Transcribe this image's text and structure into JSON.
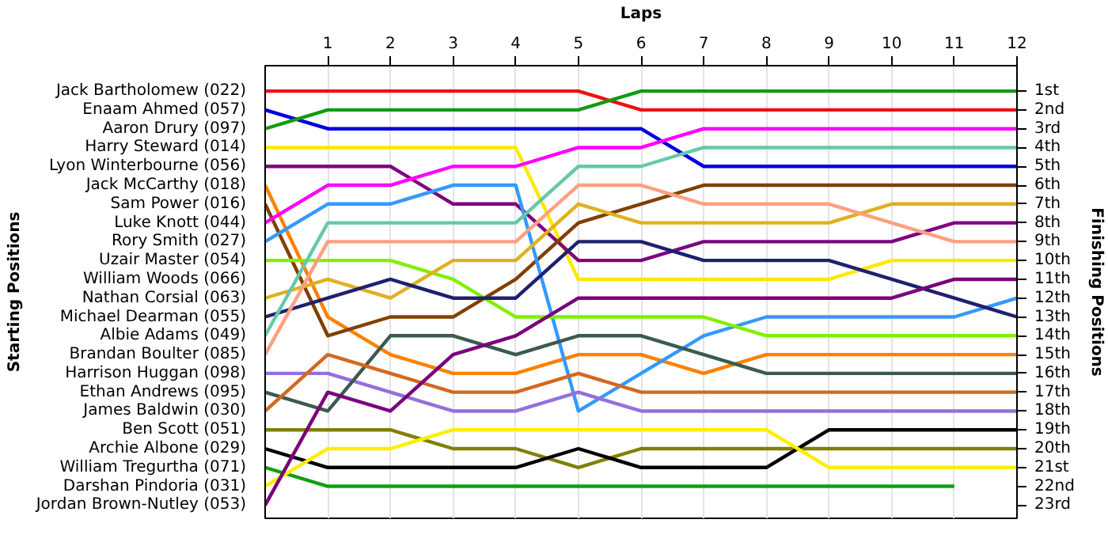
{
  "chart_data": {
    "type": "line",
    "xlabel": "Laps",
    "ylabel": "Finishing Positions",
    "annotations": [
      "Starting Positions",
      "William Woods (066)"
    ],
    "x": [
      0,
      1,
      2,
      3,
      4,
      5,
      6,
      7,
      8,
      9,
      10,
      11,
      12
    ],
    "xlim": [
      0,
      12
    ],
    "xticks": [
      1,
      2,
      3,
      4,
      5,
      6,
      7,
      8,
      9,
      10,
      11,
      12
    ],
    "ylim": [
      23.7,
      -0.35
    ],
    "yticks": [
      {
        "value": 1,
        "label": "1st"
      },
      {
        "value": 2,
        "label": "2nd"
      },
      {
        "value": 3,
        "label": "3rd"
      },
      {
        "value": 4,
        "label": "4th"
      },
      {
        "value": 5,
        "label": "5th"
      },
      {
        "value": 6,
        "label": "6th"
      },
      {
        "value": 7,
        "label": "7th"
      },
      {
        "value": 8,
        "label": "8th"
      },
      {
        "value": 9,
        "label": "9th"
      },
      {
        "value": 10,
        "label": "10th"
      },
      {
        "value": 11,
        "label": "11th"
      },
      {
        "value": 12,
        "label": "12th"
      },
      {
        "value": 13,
        "label": "13th"
      },
      {
        "value": 14,
        "label": "14th"
      },
      {
        "value": 15,
        "label": "15th"
      },
      {
        "value": 16,
        "label": "16th"
      },
      {
        "value": 17,
        "label": "17th"
      },
      {
        "value": 18,
        "label": "18th"
      },
      {
        "value": 19,
        "label": "19th"
      },
      {
        "value": 20,
        "label": "20th"
      },
      {
        "value": 21,
        "label": "21st"
      },
      {
        "value": 22,
        "label": "22nd"
      },
      {
        "value": 23,
        "label": "23rd"
      }
    ],
    "grid": "x",
    "legend": false,
    "marker": "none",
    "line_style": "solid",
    "series": [
      {
        "name": "Jack Bartholomew (022)",
        "color": "#ee1111",
        "values": [
          1,
          1,
          1,
          1,
          1,
          1,
          2,
          2,
          2,
          2,
          2,
          2,
          2
        ]
      },
      {
        "name": "Enaam Ahmed (057)",
        "color": "#0000dd",
        "values": [
          2,
          3,
          3,
          3,
          3,
          3,
          3,
          5,
          5,
          5,
          5,
          5,
          5
        ]
      },
      {
        "name": "Aaron Drury (097)",
        "color": "#129a12",
        "values": [
          3,
          2,
          2,
          2,
          2,
          2,
          1,
          1,
          1,
          1,
          1,
          1,
          1
        ]
      },
      {
        "name": "Harry Steward (014)",
        "color": "#ffe800",
        "values": [
          4,
          4,
          4,
          4,
          4,
          11,
          11,
          11,
          11,
          11,
          10,
          10,
          10
        ]
      },
      {
        "name": "Lyon Winterbourne (056)",
        "color": "#800080",
        "values": [
          5,
          5,
          5,
          7,
          7,
          10,
          10,
          9,
          9,
          9,
          9,
          8,
          8
        ]
      },
      {
        "name": "Jack McCarthy (018)",
        "color": "#ff8000",
        "values": [
          6,
          13,
          15,
          16,
          16,
          15,
          15,
          16,
          15,
          15,
          15,
          15,
          15
        ]
      },
      {
        "name": "Sam Power (016)",
        "color": "#804000",
        "values": [
          7,
          14,
          13,
          13,
          11,
          8,
          7,
          6,
          6,
          6,
          6,
          6,
          6
        ]
      },
      {
        "name": "Luke Knott (044)",
        "color": "#ff00ff",
        "values": [
          8,
          6,
          6,
          5,
          5,
          4,
          4,
          3,
          3,
          3,
          3,
          3,
          3
        ]
      },
      {
        "name": "Rory Smith (027)",
        "color": "#3399ff",
        "values": [
          9,
          7,
          7,
          6,
          6,
          18,
          16,
          14,
          13,
          13,
          13,
          13,
          12
        ]
      },
      {
        "name": "Uzair Master (054)",
        "color": "#80f000",
        "values": [
          10,
          10,
          10,
          11,
          13,
          13,
          13,
          13,
          14,
          14,
          14,
          14,
          14
        ]
      },
      {
        "name": "Nathan Corsial (063)",
        "color": "#e0b020",
        "values": [
          12,
          11,
          12,
          10,
          10,
          7,
          8,
          8,
          8,
          8,
          7,
          7,
          7
        ]
      },
      {
        "name": "Michael Dearman (055)",
        "color": "#202070",
        "values": [
          13,
          12,
          11,
          12,
          12,
          9,
          9,
          10,
          10,
          10,
          11,
          12,
          13
        ]
      },
      {
        "name": "Albie Adams (049)",
        "color": "#66c8aa",
        "values": [
          14,
          8,
          8,
          8,
          8,
          5,
          5,
          4,
          4,
          4,
          4,
          4,
          4
        ]
      },
      {
        "name": "Brandan Boulter (085)",
        "color": "#ffa080",
        "values": [
          15,
          9,
          9,
          9,
          9,
          6,
          6,
          7,
          7,
          7,
          8,
          9,
          9
        ]
      },
      {
        "name": "Harrison Huggan (098)",
        "color": "#9370db",
        "values": [
          16,
          16,
          17,
          18,
          18,
          17,
          18,
          18,
          18,
          18,
          18,
          18,
          18
        ]
      },
      {
        "name": "Ethan Andrews (095)",
        "color": "#3c5a50",
        "values": [
          17,
          18,
          14,
          14,
          15,
          14,
          14,
          15,
          16,
          16,
          16,
          16,
          16
        ]
      },
      {
        "name": "James Baldwin (030)",
        "color": "#d2691e",
        "values": [
          18,
          15,
          16,
          17,
          17,
          16,
          17,
          17,
          17,
          17,
          17,
          17,
          17
        ]
      },
      {
        "name": "Ben Scott (051)",
        "color": "#808000",
        "values": [
          19,
          19,
          19,
          20,
          20,
          21,
          20,
          20,
          20,
          20,
          20,
          20,
          20
        ]
      },
      {
        "name": "Archie Albone (029)",
        "color": "#000000",
        "values": [
          20,
          21,
          21,
          21,
          21,
          20,
          21,
          21,
          21,
          19,
          19,
          19,
          19
        ]
      },
      {
        "name": "William Tregurtha (071)",
        "color": "#10a010",
        "values": [
          21,
          22,
          22,
          22,
          22,
          22,
          22,
          22,
          22,
          22,
          22,
          22,
          null
        ]
      },
      {
        "name": "Darshan Pindoria (031)",
        "color": "#ffee00",
        "values": [
          22,
          20,
          20,
          19,
          19,
          19,
          19,
          19,
          19,
          21,
          21,
          21,
          21
        ]
      },
      {
        "name": "Jordan Brown-Nutley (053)",
        "color": "#7a007a",
        "values": [
          23,
          17,
          18,
          15,
          14,
          12,
          12,
          12,
          12,
          12,
          12,
          11,
          11
        ]
      }
    ]
  }
}
